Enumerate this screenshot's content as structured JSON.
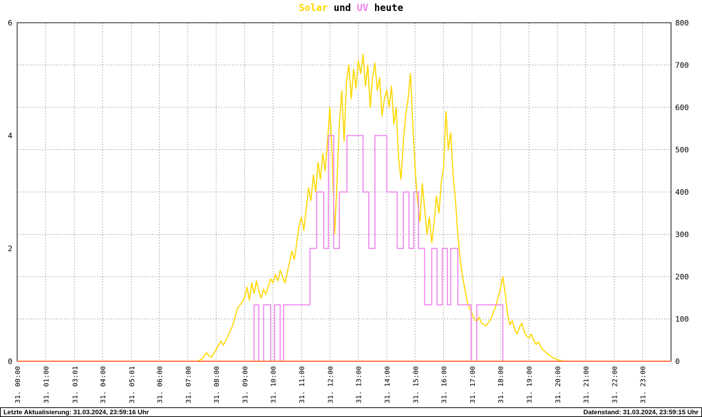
{
  "title": {
    "solar": "Solar",
    "und": "und",
    "uv": "UV",
    "heute": "heute"
  },
  "colors": {
    "solar": "#FFD700",
    "uv": "#EE82EE",
    "baseline": "#FF7F50",
    "grid": "#B3B3B3",
    "text": "#000000",
    "background": "#FFFFFF"
  },
  "footer": {
    "left": "Letzte Aktualisierung: 31.03.2024, 23:59:16 Uhr",
    "right": "Datenstand: 31.03.2024, 23:59:15 Uhr"
  },
  "chart_data": {
    "type": "line",
    "title": "Solar und UV heute",
    "grid": true,
    "legend": "none",
    "left_axis": {
      "min": 0,
      "max": 6,
      "ticks": [
        0,
        2,
        4,
        6
      ]
    },
    "right_axis": {
      "min": 0,
      "max": 800,
      "step": 100
    },
    "x_labels": [
      {
        "t": "00:00",
        "label": "31. 00:00"
      },
      {
        "t": "01:00",
        "label": "31. 01:00"
      },
      {
        "t": "03:01",
        "label": "31. 03:01"
      },
      {
        "t": "04:00",
        "label": "31. 04:00"
      },
      {
        "t": "05:01",
        "label": "31. 05:01"
      },
      {
        "t": "06:00",
        "label": "31. 06:00"
      },
      {
        "t": "07:00",
        "label": "31. 07:00"
      },
      {
        "t": "08:00",
        "label": "31. 08:00"
      },
      {
        "t": "09:00",
        "label": "31. 09:00"
      },
      {
        "t": "10:00",
        "label": "31. 10:00"
      },
      {
        "t": "11:00",
        "label": "31. 11:00"
      },
      {
        "t": "12:00",
        "label": "31. 12:00"
      },
      {
        "t": "13:00",
        "label": "31. 13:00"
      },
      {
        "t": "14:00",
        "label": "31. 14:00"
      },
      {
        "t": "15:00",
        "label": "31. 15:00"
      },
      {
        "t": "16:00",
        "label": "31. 16:00"
      },
      {
        "t": "17:00",
        "label": "31. 17:00"
      },
      {
        "t": "18:00",
        "label": "31. 18:00"
      },
      {
        "t": "19:00",
        "label": "31. 19:00"
      },
      {
        "t": "20:00",
        "label": "31. 20:00"
      },
      {
        "t": "21:00",
        "label": "31. 21:00"
      },
      {
        "t": "22:00",
        "label": "31. 22:00"
      },
      {
        "t": "23:00",
        "label": "31. 23:00"
      }
    ],
    "series": [
      {
        "name": "Solar",
        "axis": "right",
        "render": "line",
        "color": "#FFD700",
        "points": [
          [
            "00:00",
            0
          ],
          [
            "01:00",
            0
          ],
          [
            "03:01",
            0
          ],
          [
            "04:00",
            0
          ],
          [
            "05:00",
            0
          ],
          [
            "06:00",
            0
          ],
          [
            "07:00",
            0
          ],
          [
            "07:20",
            0
          ],
          [
            "07:30",
            5
          ],
          [
            "07:40",
            20
          ],
          [
            "07:45",
            13
          ],
          [
            "07:50",
            10
          ],
          [
            "08:00",
            28
          ],
          [
            "08:10",
            48
          ],
          [
            "08:15",
            38
          ],
          [
            "08:25",
            60
          ],
          [
            "08:35",
            85
          ],
          [
            "08:45",
            125
          ],
          [
            "08:55",
            140
          ],
          [
            "09:00",
            150
          ],
          [
            "09:05",
            175
          ],
          [
            "09:10",
            145
          ],
          [
            "09:15",
            185
          ],
          [
            "09:20",
            160
          ],
          [
            "09:25",
            190
          ],
          [
            "09:30",
            165
          ],
          [
            "09:35",
            150
          ],
          [
            "09:40",
            170
          ],
          [
            "09:45",
            158
          ],
          [
            "09:50",
            178
          ],
          [
            "09:55",
            195
          ],
          [
            "10:00",
            185
          ],
          [
            "10:05",
            205
          ],
          [
            "10:10",
            190
          ],
          [
            "10:15",
            215
          ],
          [
            "10:20",
            200
          ],
          [
            "10:25",
            185
          ],
          [
            "10:30",
            210
          ],
          [
            "10:35",
            235
          ],
          [
            "10:40",
            260
          ],
          [
            "10:45",
            240
          ],
          [
            "10:50",
            280
          ],
          [
            "10:55",
            320
          ],
          [
            "11:00",
            340
          ],
          [
            "11:05",
            310
          ],
          [
            "11:10",
            360
          ],
          [
            "11:15",
            410
          ],
          [
            "11:20",
            380
          ],
          [
            "11:25",
            440
          ],
          [
            "11:30",
            400
          ],
          [
            "11:35",
            470
          ],
          [
            "11:40",
            430
          ],
          [
            "11:45",
            490
          ],
          [
            "11:50",
            450
          ],
          [
            "11:55",
            520
          ],
          [
            "12:00",
            600
          ],
          [
            "12:05",
            480
          ],
          [
            "12:10",
            300
          ],
          [
            "12:15",
            425
          ],
          [
            "12:20",
            560
          ],
          [
            "12:25",
            640
          ],
          [
            "12:30",
            520
          ],
          [
            "12:35",
            660
          ],
          [
            "12:40",
            700
          ],
          [
            "12:45",
            620
          ],
          [
            "12:50",
            690
          ],
          [
            "12:55",
            645
          ],
          [
            "13:00",
            710
          ],
          [
            "13:05",
            680
          ],
          [
            "13:10",
            725
          ],
          [
            "13:15",
            650
          ],
          [
            "13:20",
            700
          ],
          [
            "13:25",
            600
          ],
          [
            "13:30",
            670
          ],
          [
            "13:35",
            705
          ],
          [
            "13:40",
            640
          ],
          [
            "13:45",
            670
          ],
          [
            "13:50",
            580
          ],
          [
            "13:55",
            620
          ],
          [
            "14:00",
            640
          ],
          [
            "14:05",
            600
          ],
          [
            "14:10",
            650
          ],
          [
            "14:15",
            560
          ],
          [
            "14:20",
            600
          ],
          [
            "14:25",
            480
          ],
          [
            "14:30",
            430
          ],
          [
            "14:35",
            520
          ],
          [
            "14:40",
            580
          ],
          [
            "14:45",
            620
          ],
          [
            "14:50",
            680
          ],
          [
            "14:55",
            560
          ],
          [
            "15:00",
            450
          ],
          [
            "15:05",
            380
          ],
          [
            "15:10",
            330
          ],
          [
            "15:15",
            420
          ],
          [
            "15:20",
            360
          ],
          [
            "15:25",
            300
          ],
          [
            "15:30",
            340
          ],
          [
            "15:35",
            280
          ],
          [
            "15:40",
            330
          ],
          [
            "15:45",
            390
          ],
          [
            "15:50",
            350
          ],
          [
            "15:55",
            420
          ],
          [
            "16:00",
            460
          ],
          [
            "16:05",
            590
          ],
          [
            "16:10",
            500
          ],
          [
            "16:15",
            540
          ],
          [
            "16:20",
            440
          ],
          [
            "16:25",
            380
          ],
          [
            "16:30",
            300
          ],
          [
            "16:35",
            240
          ],
          [
            "16:40",
            200
          ],
          [
            "16:45",
            170
          ],
          [
            "16:50",
            140
          ],
          [
            "16:55",
            125
          ],
          [
            "17:00",
            112
          ],
          [
            "17:05",
            100
          ],
          [
            "17:10",
            94
          ],
          [
            "17:15",
            104
          ],
          [
            "17:20",
            90
          ],
          [
            "17:30",
            84
          ],
          [
            "17:40",
            100
          ],
          [
            "17:50",
            130
          ],
          [
            "18:00",
            172
          ],
          [
            "18:05",
            200
          ],
          [
            "18:10",
            160
          ],
          [
            "18:15",
            112
          ],
          [
            "18:20",
            86
          ],
          [
            "18:25",
            96
          ],
          [
            "18:30",
            76
          ],
          [
            "18:35",
            64
          ],
          [
            "18:40",
            80
          ],
          [
            "18:45",
            90
          ],
          [
            "18:50",
            70
          ],
          [
            "18:55",
            60
          ],
          [
            "19:00",
            55
          ],
          [
            "19:05",
            64
          ],
          [
            "19:10",
            50
          ],
          [
            "19:15",
            40
          ],
          [
            "19:20",
            46
          ],
          [
            "19:25",
            34
          ],
          [
            "19:30",
            27
          ],
          [
            "19:40",
            17
          ],
          [
            "19:50",
            9
          ],
          [
            "20:00",
            4
          ],
          [
            "20:10",
            1
          ],
          [
            "20:20",
            0
          ],
          [
            "21:00",
            0
          ],
          [
            "22:00",
            0
          ],
          [
            "23:00",
            0
          ],
          [
            "23:59",
            0
          ]
        ]
      },
      {
        "name": "UV",
        "axis": "left",
        "render": "step",
        "color": "#EE82EE",
        "points": [
          [
            "00:00",
            0
          ],
          [
            "09:20",
            1
          ],
          [
            "09:30",
            0
          ],
          [
            "09:40",
            1
          ],
          [
            "09:55",
            0
          ],
          [
            "10:03",
            1
          ],
          [
            "10:15",
            0
          ],
          [
            "10:22",
            1
          ],
          [
            "11:18",
            2
          ],
          [
            "11:32",
            3
          ],
          [
            "11:47",
            2
          ],
          [
            "11:57",
            4
          ],
          [
            "12:08",
            2
          ],
          [
            "12:20",
            3
          ],
          [
            "12:36",
            4
          ],
          [
            "13:10",
            3
          ],
          [
            "13:22",
            2
          ],
          [
            "13:35",
            4
          ],
          [
            "14:00",
            3
          ],
          [
            "14:22",
            2
          ],
          [
            "14:35",
            3
          ],
          [
            "14:47",
            2
          ],
          [
            "14:57",
            3
          ],
          [
            "15:07",
            2
          ],
          [
            "15:20",
            1
          ],
          [
            "15:35",
            2
          ],
          [
            "15:46",
            1
          ],
          [
            "15:57",
            2
          ],
          [
            "16:08",
            1
          ],
          [
            "16:15",
            2
          ],
          [
            "16:30",
            1
          ],
          [
            "16:58",
            0
          ],
          [
            "17:10",
            1
          ],
          [
            "18:05",
            0
          ],
          [
            "23:59",
            0
          ]
        ]
      }
    ],
    "zero_line": {
      "value": 0,
      "color": "#FF7F50"
    }
  }
}
